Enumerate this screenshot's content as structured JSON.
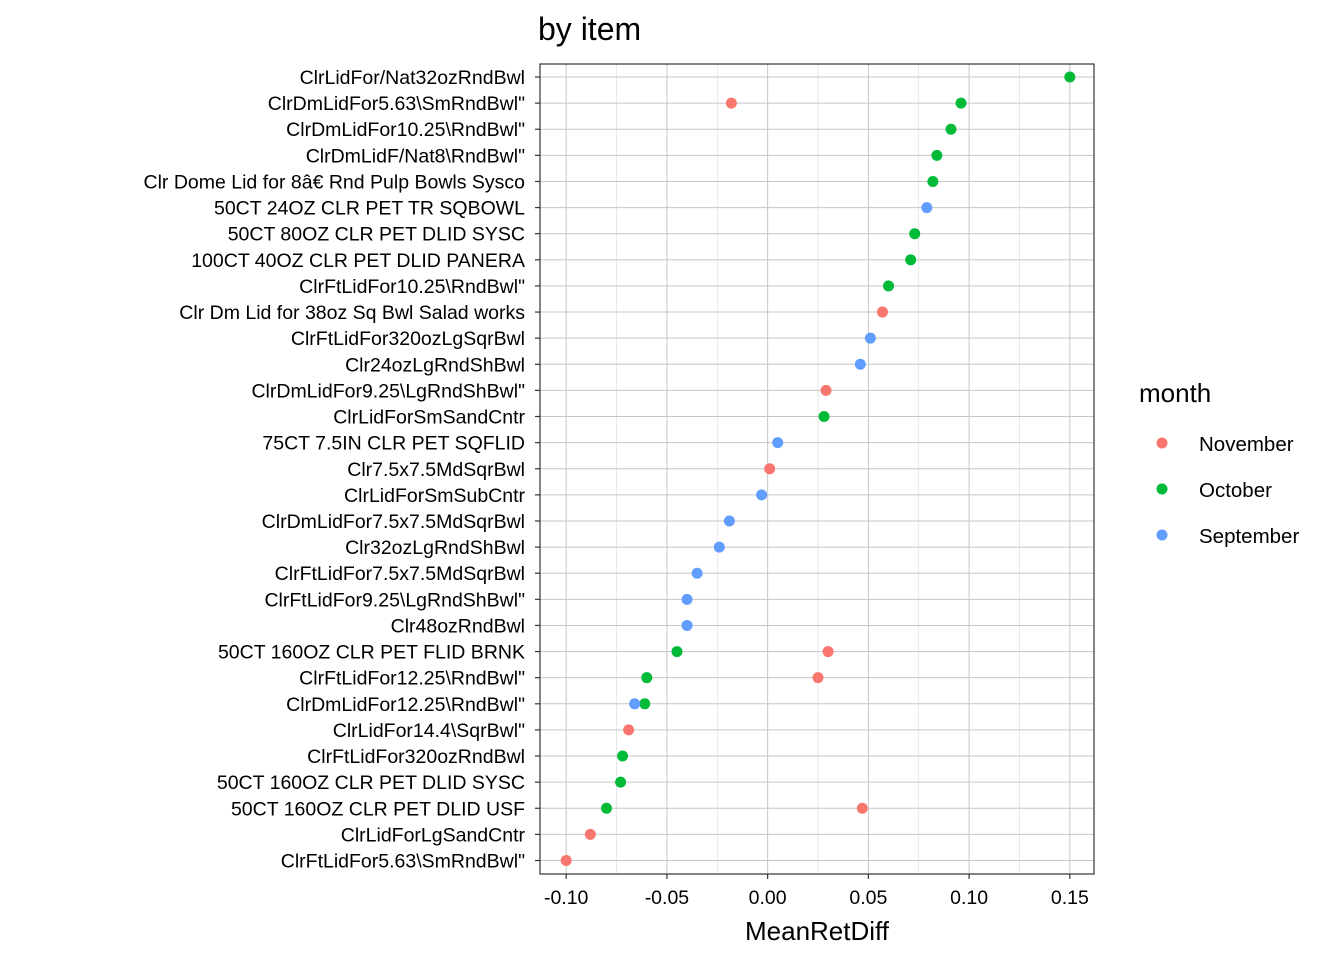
{
  "chart_data": {
    "type": "scatter",
    "title": "by item",
    "xlabel": "MeanRetDiff",
    "ylabel": "",
    "xlim": [
      -0.113,
      0.162
    ],
    "x_ticks": [
      -0.1,
      -0.05,
      0.0,
      0.05,
      0.1,
      0.15
    ],
    "x_tick_labels": [
      "-0.10",
      "-0.05",
      "0.00",
      "0.05",
      "0.10",
      "0.15"
    ],
    "grid": true,
    "legend": {
      "title": "month",
      "position": "right",
      "entries": [
        {
          "name": "November",
          "color": "#F8766D"
        },
        {
          "name": "October",
          "color": "#00BA38"
        },
        {
          "name": "September",
          "color": "#619CFF"
        }
      ]
    },
    "categories": [
      "ClrLidFor/Nat32ozRndBwl",
      "ClrDmLidFor5.63\\SmRndBwl\"",
      "ClrDmLidFor10.25\\RndBwl\"",
      "ClrDmLidF/Nat8\\RndBwl\"",
      "Clr Dome Lid for 8â€ Rnd Pulp Bowls Sysco",
      "50CT 24OZ CLR PET TR SQBOWL",
      "50CT 80OZ CLR PET DLID SYSC",
      "100CT 40OZ CLR PET DLID PANERA",
      "ClrFtLidFor10.25\\RndBwl\"",
      "Clr Dm Lid for 38oz Sq Bwl Salad works",
      "ClrFtLidFor320ozLgSqrBwl",
      "Clr24ozLgRndShBwl",
      "ClrDmLidFor9.25\\LgRndShBwl\"",
      "ClrLidForSmSandCntr",
      "75CT 7.5IN CLR PET SQFLID",
      "Clr7.5x7.5MdSqrBwl",
      "ClrLidForSmSubCntr",
      "ClrDmLidFor7.5x7.5MdSqrBwl",
      "Clr32ozLgRndShBwl",
      "ClrFtLidFor7.5x7.5MdSqrBwl",
      "ClrFtLidFor9.25\\LgRndShBwl\"",
      "Clr48ozRndBwl",
      "50CT 160OZ CLR PET FLID BRNK",
      "ClrFtLidFor12.25\\RndBwl\"",
      "ClrDmLidFor12.25\\RndBwl\"",
      "ClrLidFor14.4\\SqrBwl\"",
      "ClrFtLidFor320ozRndBwl",
      "50CT 160OZ CLR PET DLID SYSC",
      "50CT 160OZ CLR PET DLID USF",
      "ClrLidForLgSandCntr",
      "ClrFtLidFor5.63\\SmRndBwl\""
    ],
    "points": [
      {
        "item": 0,
        "month": "October",
        "x": 0.15
      },
      {
        "item": 1,
        "month": "October",
        "x": 0.096
      },
      {
        "item": 1,
        "month": "November",
        "x": -0.018
      },
      {
        "item": 2,
        "month": "October",
        "x": 0.091
      },
      {
        "item": 3,
        "month": "October",
        "x": 0.084
      },
      {
        "item": 4,
        "month": "October",
        "x": 0.082
      },
      {
        "item": 5,
        "month": "September",
        "x": 0.079
      },
      {
        "item": 6,
        "month": "October",
        "x": 0.073
      },
      {
        "item": 7,
        "month": "October",
        "x": 0.071
      },
      {
        "item": 8,
        "month": "October",
        "x": 0.06
      },
      {
        "item": 9,
        "month": "November",
        "x": 0.057
      },
      {
        "item": 10,
        "month": "September",
        "x": 0.051
      },
      {
        "item": 11,
        "month": "September",
        "x": 0.046
      },
      {
        "item": 12,
        "month": "November",
        "x": 0.029
      },
      {
        "item": 13,
        "month": "October",
        "x": 0.028
      },
      {
        "item": 14,
        "month": "September",
        "x": 0.005
      },
      {
        "item": 15,
        "month": "November",
        "x": 0.001
      },
      {
        "item": 16,
        "month": "September",
        "x": -0.003
      },
      {
        "item": 17,
        "month": "September",
        "x": -0.019
      },
      {
        "item": 18,
        "month": "September",
        "x": -0.024
      },
      {
        "item": 19,
        "month": "September",
        "x": -0.035
      },
      {
        "item": 20,
        "month": "September",
        "x": -0.04
      },
      {
        "item": 21,
        "month": "September",
        "x": -0.04
      },
      {
        "item": 22,
        "month": "November",
        "x": 0.03
      },
      {
        "item": 22,
        "month": "October",
        "x": -0.045
      },
      {
        "item": 23,
        "month": "November",
        "x": 0.025
      },
      {
        "item": 23,
        "month": "October",
        "x": -0.06
      },
      {
        "item": 24,
        "month": "October",
        "x": -0.061
      },
      {
        "item": 24,
        "month": "September",
        "x": -0.066
      },
      {
        "item": 25,
        "month": "November",
        "x": -0.069
      },
      {
        "item": 26,
        "month": "October",
        "x": -0.072
      },
      {
        "item": 27,
        "month": "October",
        "x": -0.073
      },
      {
        "item": 28,
        "month": "November",
        "x": 0.047
      },
      {
        "item": 28,
        "month": "October",
        "x": -0.08
      },
      {
        "item": 29,
        "month": "November",
        "x": -0.088
      },
      {
        "item": 30,
        "month": "November",
        "x": -0.1
      }
    ]
  }
}
